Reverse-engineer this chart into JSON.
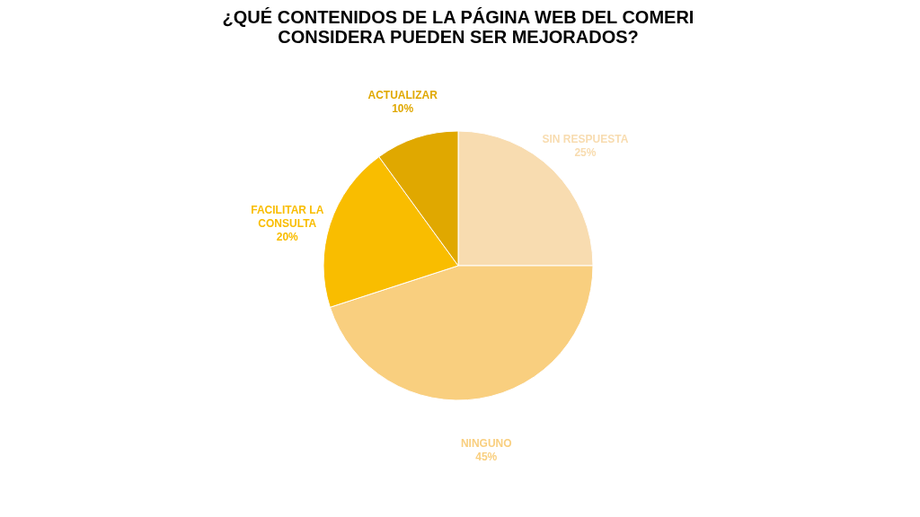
{
  "chart_data": {
    "type": "pie",
    "title": [
      "¿QUÉ CONTENIDOS DE LA PÁGINA WEB DEL COMERI",
      "CONSIDERA PUEDEN SER MEJORADOS?"
    ],
    "categories": [
      "SIN RESPUESTA",
      "NINGUNO",
      "FACILITAR LA CONSULTA",
      "ACTUALIZAR"
    ],
    "values": [
      25,
      45,
      20,
      10
    ],
    "value_labels": [
      "25%",
      "45%",
      "20%",
      "10%"
    ],
    "colors": [
      "#f8dcb0",
      "#f9cf7f",
      "#f9bd00",
      "#e0a800"
    ],
    "legend": false
  }
}
